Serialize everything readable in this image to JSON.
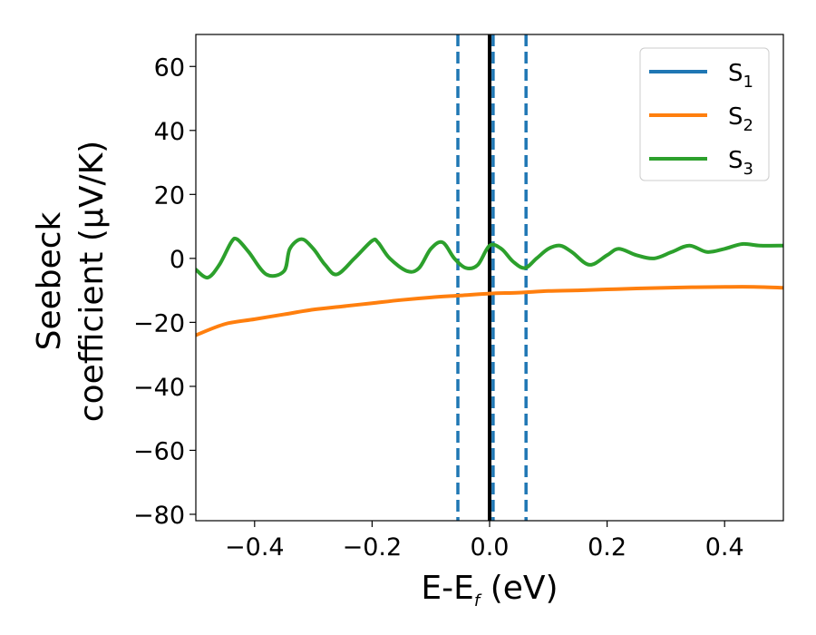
{
  "chart_data": {
    "type": "line",
    "xlabel_main": "E-E",
    "xlabel_sub": "f",
    "xlabel_unit": " (eV)",
    "ylabel_line1": "Seebeck",
    "ylabel_line2": "coefficient  (μV/K)",
    "xlim": [
      -0.5,
      0.5
    ],
    "ylim": [
      -82,
      70
    ],
    "xticks": [
      -0.4,
      -0.2,
      0.0,
      0.2,
      0.4
    ],
    "xtick_labels": [
      "−0.4",
      "−0.2",
      "0.0",
      "0.2",
      "0.4"
    ],
    "yticks": [
      60,
      40,
      20,
      0,
      -20,
      -40,
      -60,
      -80
    ],
    "ytick_labels": [
      "60",
      "40",
      "20",
      "0",
      "−20",
      "−40",
      "−60",
      "−80"
    ],
    "legend_position": "top-right",
    "series": [
      {
        "name": "S",
        "name_sub": "1",
        "color": "#1f77b4",
        "x": [],
        "y": []
      },
      {
        "name": "S",
        "name_sub": "2",
        "color": "#ff7f0e",
        "x": [
          -0.5,
          -0.45,
          -0.4,
          -0.35,
          -0.3,
          -0.25,
          -0.2,
          -0.15,
          -0.1,
          -0.05,
          0.0,
          0.05,
          0.1,
          0.15,
          0.2,
          0.25,
          0.3,
          0.35,
          0.4,
          0.45,
          0.5
        ],
        "y": [
          -24,
          -20.5,
          -19,
          -17.5,
          -16,
          -15,
          -14,
          -13,
          -12.2,
          -11.6,
          -11,
          -10.7,
          -10.2,
          -10,
          -9.7,
          -9.4,
          -9.2,
          -9,
          -8.9,
          -8.9,
          -9.2
        ]
      },
      {
        "name": "S",
        "name_sub": "3",
        "color": "#2ca02c",
        "x": [
          -0.5,
          -0.48,
          -0.46,
          -0.44,
          -0.43,
          -0.41,
          -0.38,
          -0.35,
          -0.34,
          -0.32,
          -0.3,
          -0.28,
          -0.26,
          -0.23,
          -0.2,
          -0.19,
          -0.17,
          -0.14,
          -0.12,
          -0.1,
          -0.08,
          -0.06,
          -0.04,
          -0.02,
          0.0,
          0.02,
          0.04,
          0.06,
          0.08,
          0.1,
          0.12,
          0.14,
          0.17,
          0.2,
          0.22,
          0.25,
          0.28,
          0.31,
          0.34,
          0.37,
          0.4,
          0.43,
          0.46,
          0.5
        ],
        "y": [
          -3.5,
          -6,
          -2,
          5,
          6,
          2,
          -5,
          -4,
          3,
          6,
          3,
          -2,
          -5,
          0,
          5.5,
          5,
          0,
          -4,
          -3,
          3,
          5,
          0,
          -3,
          -2,
          4,
          3,
          -1,
          -3,
          0,
          3,
          4,
          2,
          -2,
          1,
          3,
          1,
          0,
          2,
          4,
          2,
          3,
          4.5,
          4,
          4
        ]
      }
    ],
    "vlines": [
      {
        "x": -0.054,
        "color": "#1f77b4",
        "style": "dashed"
      },
      {
        "x": 0.006,
        "color": "#1f77b4",
        "style": "dashed"
      },
      {
        "x": 0.062,
        "color": "#1f77b4",
        "style": "dashed"
      },
      {
        "x": 0.0,
        "color": "#000000",
        "style": "solid"
      }
    ]
  }
}
